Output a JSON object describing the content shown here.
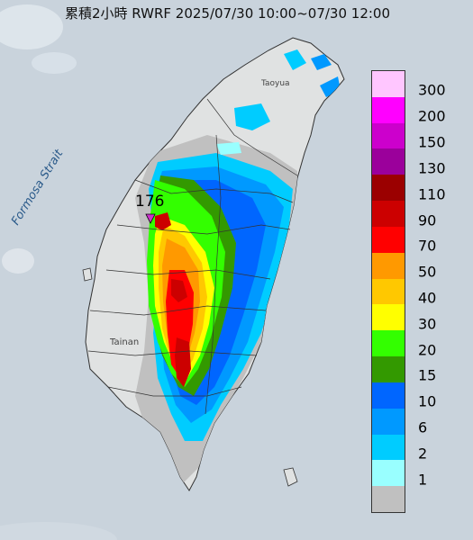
{
  "title": "累積2小時 RWRF 2025/07/30 10:00~07/30 12:00",
  "map_labels": {
    "strait": "Formosa Strait",
    "taoyuan": "Taoyua",
    "tainan": "Tainan",
    "peak_value": "176"
  },
  "legend": {
    "bins": [
      {
        "label": "300",
        "color": "#ffc6ff"
      },
      {
        "label": "200",
        "color": "#ff00ff"
      },
      {
        "label": "150",
        "color": "#cc00cc"
      },
      {
        "label": "130",
        "color": "#9b009b"
      },
      {
        "label": "110",
        "color": "#9b0000"
      },
      {
        "label": "90",
        "color": "#cc0000"
      },
      {
        "label": "70",
        "color": "#ff0000"
      },
      {
        "label": "50",
        "color": "#ff9900"
      },
      {
        "label": "40",
        "color": "#ffc800"
      },
      {
        "label": "30",
        "color": "#ffff00"
      },
      {
        "label": "20",
        "color": "#33ff00"
      },
      {
        "label": "15",
        "color": "#339900"
      },
      {
        "label": "10",
        "color": "#0066ff"
      },
      {
        "label": "6",
        "color": "#0099ff"
      },
      {
        "label": "2",
        "color": "#00ccff"
      },
      {
        "label": "1",
        "color": "#99ffff"
      },
      {
        "label": "",
        "color": "#c0c0c0"
      }
    ]
  },
  "colors": {
    "sea": "#c9d3dc",
    "land": "#e2e4e4",
    "no_rain": "#c0c0c0",
    "marker": "#cc33cc"
  }
}
